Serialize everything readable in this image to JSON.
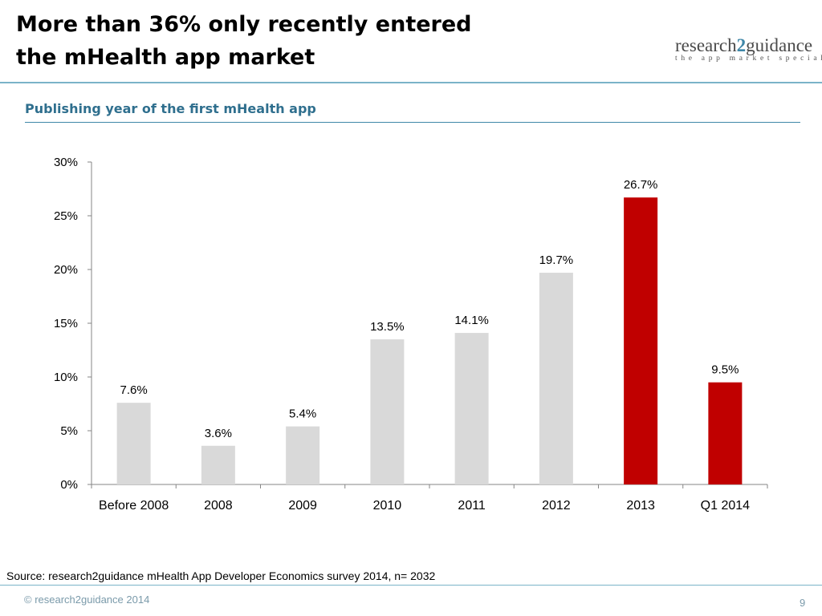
{
  "slide": {
    "title_line1": "More than 36% only recently entered",
    "title_line2": "the mHealth app market",
    "subtitle": "Publishing year of the first mHealth app",
    "source": "Source: research2guidance mHealth App Developer Economics survey 2014, n= 2032",
    "copyright": "© research2guidance 2014",
    "page_number": "9"
  },
  "logo": {
    "text_pre": "research",
    "text_num": "2",
    "text_post": "guidance",
    "tagline": "the app market specialists"
  },
  "colors": {
    "bar_default": "#d9d9d9",
    "bar_highlight": "#c00000",
    "accent": "#3f87a8"
  },
  "chart_data": {
    "type": "bar",
    "title": "Publishing year of the first mHealth app",
    "xlabel": "",
    "ylabel": "",
    "categories": [
      "Before 2008",
      "2008",
      "2009",
      "2010",
      "2011",
      "2012",
      "2013",
      "Q1 2014"
    ],
    "values": [
      7.6,
      3.6,
      5.4,
      13.5,
      14.1,
      19.7,
      26.7,
      9.5
    ],
    "data_labels": [
      "7.6%",
      "3.6%",
      "5.4%",
      "13.5%",
      "14.1%",
      "19.7%",
      "26.7%",
      "9.5%"
    ],
    "highlighted": [
      false,
      false,
      false,
      false,
      false,
      false,
      true,
      true
    ],
    "ylim": [
      0,
      30
    ],
    "yticks": [
      0,
      5,
      10,
      15,
      20,
      25,
      30
    ],
    "ytick_labels": [
      "0%",
      "5%",
      "10%",
      "15%",
      "20%",
      "25%",
      "30%"
    ],
    "grid": false,
    "legend": "none"
  }
}
